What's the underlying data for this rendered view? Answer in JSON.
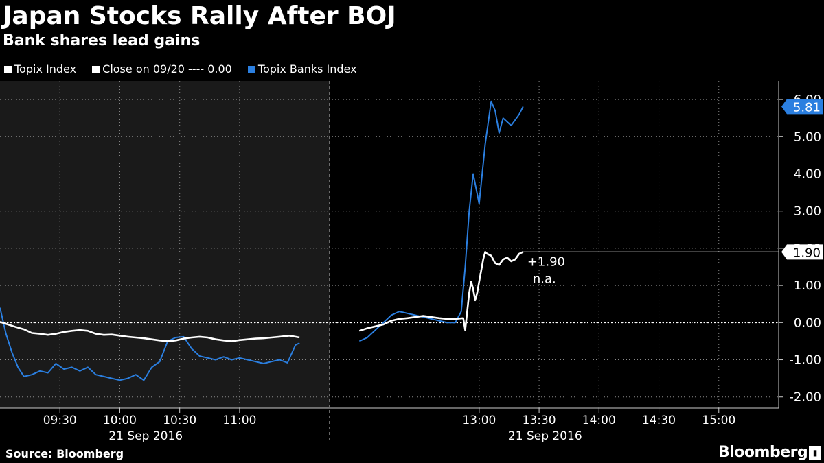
{
  "chart_data": {
    "type": "line",
    "title": "Japan Stocks Rally After BOJ",
    "subtitle": "Bank shares lead gains",
    "legend": [
      {
        "label": "Topix Index",
        "color": "#ffffff"
      },
      {
        "label": "Close on 09/20 ---- 0.00",
        "color": "#ffffff"
      },
      {
        "label": "Topix Banks Index",
        "color": "#2b7fe0"
      }
    ],
    "ylim": [
      -2.3,
      6.5
    ],
    "yticks": [
      6.0,
      5.0,
      4.0,
      3.0,
      2.0,
      1.0,
      0.0,
      -1.0,
      -2.0
    ],
    "ytick_labels": [
      "6.00",
      "5.00",
      "4.00",
      "3.00",
      "2.00",
      "1.00",
      "0.00",
      "-1.00",
      "-2.00"
    ],
    "x_unit": "minutes since 09:00",
    "xlim": [
      0,
      390
    ],
    "x_morning_end": 150,
    "x_afternoon_start": 180,
    "xticks": [
      30,
      60,
      90,
      120,
      240,
      270,
      300,
      330,
      360
    ],
    "xtick_labels": [
      "09:30",
      "10:00",
      "10:30",
      "11:00",
      "13:00",
      "13:30",
      "14:00",
      "14:30",
      "15:00"
    ],
    "date_labels": [
      "21 Sep 2016",
      "21 Sep 2016"
    ],
    "date_label_x": [
      73,
      273
    ],
    "reference_line": 0.0,
    "series": [
      {
        "name": "Topix Index",
        "color": "#ffffff",
        "x": [
          0,
          4,
          8,
          12,
          16,
          20,
          24,
          28,
          32,
          36,
          40,
          44,
          48,
          52,
          56,
          60,
          64,
          68,
          72,
          76,
          80,
          84,
          88,
          92,
          96,
          100,
          104,
          108,
          112,
          116,
          120,
          124,
          128,
          132,
          136,
          140,
          145,
          150,
          180,
          184,
          188,
          192,
          196,
          200,
          204,
          208,
          212,
          216,
          220,
          224,
          228,
          232,
          233,
          234,
          235,
          236,
          237,
          238,
          239,
          240,
          241,
          242,
          243,
          244,
          246,
          248,
          250,
          252,
          254,
          256,
          258,
          260,
          262
        ],
        "values": [
          0.02,
          -0.05,
          -0.12,
          -0.18,
          -0.28,
          -0.3,
          -0.33,
          -0.3,
          -0.25,
          -0.22,
          -0.2,
          -0.22,
          -0.3,
          -0.33,
          -0.32,
          -0.35,
          -0.38,
          -0.4,
          -0.42,
          -0.45,
          -0.48,
          -0.5,
          -0.48,
          -0.43,
          -0.4,
          -0.38,
          -0.4,
          -0.45,
          -0.48,
          -0.5,
          -0.47,
          -0.45,
          -0.43,
          -0.42,
          -0.4,
          -0.38,
          -0.35,
          -0.4,
          -0.22,
          -0.15,
          -0.1,
          -0.05,
          0.05,
          0.1,
          0.12,
          0.15,
          0.18,
          0.15,
          0.12,
          0.1,
          0.1,
          0.12,
          -0.2,
          0.3,
          0.8,
          1.1,
          0.9,
          0.6,
          0.8,
          1.1,
          1.4,
          1.7,
          1.9,
          1.85,
          1.8,
          1.6,
          1.55,
          1.7,
          1.75,
          1.65,
          1.7,
          1.85,
          1.9
        ]
      },
      {
        "name": "Topix Banks Index",
        "color": "#2b7fe0",
        "x": [
          0,
          3,
          6,
          9,
          12,
          16,
          20,
          24,
          28,
          32,
          36,
          40,
          44,
          48,
          52,
          56,
          60,
          64,
          68,
          72,
          76,
          80,
          84,
          88,
          92,
          96,
          100,
          104,
          108,
          112,
          116,
          120,
          124,
          128,
          132,
          136,
          140,
          144,
          148,
          150,
          180,
          184,
          188,
          192,
          196,
          200,
          204,
          208,
          212,
          216,
          220,
          224,
          228,
          231,
          233,
          235,
          237,
          240,
          243,
          246,
          248,
          250,
          252,
          254,
          256,
          258,
          260,
          262
        ],
        "values": [
          0.4,
          -0.3,
          -0.8,
          -1.2,
          -1.45,
          -1.4,
          -1.3,
          -1.35,
          -1.1,
          -1.25,
          -1.2,
          -1.3,
          -1.2,
          -1.4,
          -1.45,
          -1.5,
          -1.55,
          -1.5,
          -1.4,
          -1.55,
          -1.2,
          -1.05,
          -0.5,
          -0.4,
          -0.38,
          -0.7,
          -0.9,
          -0.95,
          -1.0,
          -0.92,
          -1.0,
          -0.95,
          -1.0,
          -1.05,
          -1.1,
          -1.05,
          -1.0,
          -1.08,
          -0.6,
          -0.55,
          -0.5,
          -0.4,
          -0.2,
          0.0,
          0.2,
          0.3,
          0.25,
          0.2,
          0.15,
          0.1,
          0.05,
          0.0,
          0.0,
          0.3,
          1.5,
          3.0,
          4.0,
          3.2,
          4.8,
          5.95,
          5.7,
          5.1,
          5.5,
          5.4,
          5.3,
          5.45,
          5.6,
          5.81
        ]
      }
    ],
    "end_labels": [
      {
        "series": "Topix Banks Index",
        "value": 5.81,
        "text": "5.81",
        "bg": "#2b7fe0",
        "fg": "#ffffff"
      },
      {
        "series": "Topix Index",
        "value": 1.9,
        "text": "1.90",
        "bg": "#ffffff",
        "fg": "#000000"
      }
    ],
    "annotations": [
      "+1.90",
      "n.a."
    ]
  },
  "footer": {
    "source": "Source: Bloomberg",
    "brand": "Bloomberg"
  },
  "colors": {
    "background": "#000000",
    "morning_session_bg": "#1a1a1a",
    "grid": "#8a8a8a",
    "banks": "#2b7fe0",
    "topix": "#ffffff"
  },
  "icons": {
    "brand": "bloomberg-terminal-icon"
  }
}
